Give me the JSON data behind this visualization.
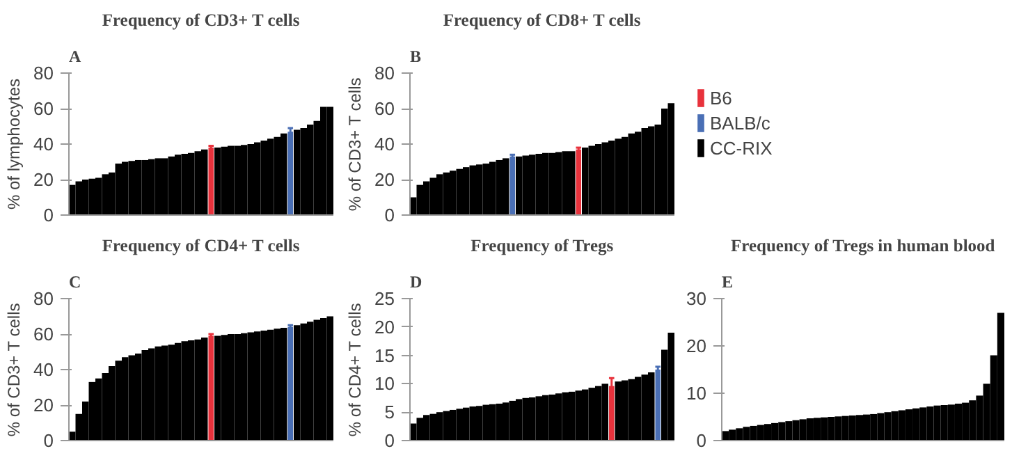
{
  "chart_data": [
    {
      "type": "bar",
      "title": "Frequency of CD3+ T cells",
      "ylabel": "% of lymphocytes",
      "annotations": [
        "A"
      ],
      "categories": [
        null,
        null,
        null,
        null,
        null,
        null,
        null,
        null,
        null,
        null,
        null,
        null,
        null,
        null,
        null,
        null,
        null,
        null,
        null,
        null,
        null,
        null,
        null,
        null,
        null,
        null,
        null,
        null,
        null,
        null,
        null,
        null,
        null,
        null,
        null,
        null,
        null,
        null,
        null,
        null
      ],
      "series": [
        {
          "color": "#000000",
          "values": [
            17,
            19,
            20,
            20.5,
            21,
            23,
            24,
            29,
            30,
            30.5,
            31,
            31,
            31.5,
            32,
            32,
            33,
            34,
            34.5,
            35,
            36,
            37,
            null,
            38,
            38.5,
            39,
            39,
            39.5,
            40,
            41,
            42,
            43,
            44,
            46,
            null,
            48,
            49,
            51,
            53,
            61,
            61
          ]
        },
        {
          "color": "#e8323c",
          "values": [
            null,
            null,
            null,
            null,
            null,
            null,
            null,
            null,
            null,
            null,
            null,
            null,
            null,
            null,
            null,
            null,
            null,
            null,
            null,
            null,
            null,
            38,
            null,
            null,
            null,
            null,
            null,
            null,
            null,
            null,
            null,
            null,
            null,
            null,
            null,
            null,
            null,
            null,
            null,
            null
          ],
          "errors": [
            null,
            null,
            null,
            null,
            null,
            null,
            null,
            null,
            null,
            null,
            null,
            null,
            null,
            null,
            null,
            null,
            null,
            null,
            null,
            null,
            null,
            1,
            null,
            null,
            null,
            null,
            null,
            null,
            null,
            null,
            null,
            null,
            null,
            null,
            null,
            null,
            null,
            null,
            null,
            null
          ]
        },
        {
          "color": "#4a6fb5",
          "values": [
            null,
            null,
            null,
            null,
            null,
            null,
            null,
            null,
            null,
            null,
            null,
            null,
            null,
            null,
            null,
            null,
            null,
            null,
            null,
            null,
            null,
            null,
            null,
            null,
            null,
            null,
            null,
            null,
            null,
            null,
            null,
            null,
            null,
            47,
            null,
            null,
            null,
            null,
            null,
            null
          ],
          "errors": [
            null,
            null,
            null,
            null,
            null,
            null,
            null,
            null,
            null,
            null,
            null,
            null,
            null,
            null,
            null,
            null,
            null,
            null,
            null,
            null,
            null,
            null,
            null,
            null,
            null,
            null,
            null,
            null,
            null,
            null,
            null,
            null,
            null,
            2,
            null,
            null,
            null,
            null,
            null,
            null
          ]
        }
      ],
      "ylim": [
        0,
        80
      ],
      "yticks": [
        0,
        20,
        40,
        60,
        80
      ],
      "tick_labels": "y"
    },
    {
      "type": "bar",
      "title": "Frequency of CD8+ T cells",
      "ylabel": "% of CD3+ T cells",
      "annotations": [
        "B"
      ],
      "categories": [
        null,
        null,
        null,
        null,
        null,
        null,
        null,
        null,
        null,
        null,
        null,
        null,
        null,
        null,
        null,
        null,
        null,
        null,
        null,
        null,
        null,
        null,
        null,
        null,
        null,
        null,
        null,
        null,
        null,
        null,
        null,
        null,
        null,
        null,
        null,
        null,
        null,
        null,
        null,
        null
      ],
      "series": [
        {
          "name": "B6",
          "color": "#e8323c",
          "values": [
            null,
            null,
            null,
            null,
            null,
            null,
            null,
            null,
            null,
            null,
            null,
            null,
            null,
            null,
            null,
            null,
            null,
            null,
            null,
            null,
            null,
            null,
            null,
            null,
            null,
            37,
            null,
            null,
            null,
            null,
            null,
            null,
            null,
            null,
            null,
            null,
            null,
            null,
            null,
            null
          ],
          "errors": [
            null,
            null,
            null,
            null,
            null,
            null,
            null,
            null,
            null,
            null,
            null,
            null,
            null,
            null,
            null,
            null,
            null,
            null,
            null,
            null,
            null,
            null,
            null,
            null,
            null,
            1,
            null,
            null,
            null,
            null,
            null,
            null,
            null,
            null,
            null,
            null,
            null,
            null,
            null,
            null
          ]
        },
        {
          "name": "BALB/c",
          "color": "#4a6fb5",
          "values": [
            null,
            null,
            null,
            null,
            null,
            null,
            null,
            null,
            null,
            null,
            null,
            null,
            null,
            null,
            null,
            33,
            null,
            null,
            null,
            null,
            null,
            null,
            null,
            null,
            null,
            null,
            null,
            null,
            null,
            null,
            null,
            null,
            null,
            null,
            null,
            null,
            null,
            null,
            null,
            null
          ],
          "errors": [
            null,
            null,
            null,
            null,
            null,
            null,
            null,
            null,
            null,
            null,
            null,
            null,
            null,
            null,
            null,
            1,
            null,
            null,
            null,
            null,
            null,
            null,
            null,
            null,
            null,
            null,
            null,
            null,
            null,
            null,
            null,
            null,
            null,
            null,
            null,
            null,
            null,
            null,
            null,
            null
          ]
        },
        {
          "name": "CC-RIX",
          "color": "#000000",
          "values": [
            10,
            17,
            19,
            21,
            23,
            24,
            25,
            26,
            27,
            28,
            28.5,
            29,
            30,
            31,
            32,
            null,
            33,
            33.5,
            34,
            34.5,
            35,
            35,
            35.5,
            36,
            36,
            null,
            38,
            39,
            40,
            41,
            42,
            43,
            44,
            46,
            47,
            49,
            50,
            51,
            60,
            63
          ]
        }
      ],
      "ylim": [
        0,
        80
      ],
      "yticks": [
        0,
        20,
        40,
        60,
        80
      ],
      "tick_labels": "y",
      "legend": "right"
    },
    {
      "type": "bar",
      "title": "Frequency of CD4+ T cells",
      "ylabel": "% of CD3+ T cells",
      "annotations": [
        "C"
      ],
      "categories": [
        null,
        null,
        null,
        null,
        null,
        null,
        null,
        null,
        null,
        null,
        null,
        null,
        null,
        null,
        null,
        null,
        null,
        null,
        null,
        null,
        null,
        null,
        null,
        null,
        null,
        null,
        null,
        null,
        null,
        null,
        null,
        null,
        null,
        null,
        null,
        null,
        null,
        null,
        null,
        null
      ],
      "series": [
        {
          "color": "#000000",
          "values": [
            5,
            15,
            22,
            33,
            35,
            38,
            42,
            45,
            47,
            48,
            49,
            51,
            52,
            53,
            53.5,
            54,
            55,
            56,
            56.5,
            57,
            58,
            null,
            59,
            59.5,
            60,
            60,
            60.5,
            61,
            61.5,
            62,
            62.5,
            63,
            63.5,
            null,
            65,
            66,
            67,
            68,
            69,
            70
          ]
        },
        {
          "color": "#e8323c",
          "values": [
            null,
            null,
            null,
            null,
            null,
            null,
            null,
            null,
            null,
            null,
            null,
            null,
            null,
            null,
            null,
            null,
            null,
            null,
            null,
            null,
            null,
            59,
            null,
            null,
            null,
            null,
            null,
            null,
            null,
            null,
            null,
            null,
            null,
            null,
            null,
            null,
            null,
            null,
            null,
            null
          ],
          "errors": [
            null,
            null,
            null,
            null,
            null,
            null,
            null,
            null,
            null,
            null,
            null,
            null,
            null,
            null,
            null,
            null,
            null,
            null,
            null,
            null,
            null,
            1,
            null,
            null,
            null,
            null,
            null,
            null,
            null,
            null,
            null,
            null,
            null,
            null,
            null,
            null,
            null,
            null,
            null,
            null
          ]
        },
        {
          "color": "#4a6fb5",
          "values": [
            null,
            null,
            null,
            null,
            null,
            null,
            null,
            null,
            null,
            null,
            null,
            null,
            null,
            null,
            null,
            null,
            null,
            null,
            null,
            null,
            null,
            null,
            null,
            null,
            null,
            null,
            null,
            null,
            null,
            null,
            null,
            null,
            null,
            64,
            null,
            null,
            null,
            null,
            null,
            null
          ],
          "errors": [
            null,
            null,
            null,
            null,
            null,
            null,
            null,
            null,
            null,
            null,
            null,
            null,
            null,
            null,
            null,
            null,
            null,
            null,
            null,
            null,
            null,
            null,
            null,
            null,
            null,
            null,
            null,
            null,
            null,
            null,
            null,
            null,
            null,
            1,
            null,
            null,
            null,
            null,
            null,
            null
          ]
        }
      ],
      "ylim": [
        0,
        80
      ],
      "yticks": [
        0,
        20,
        40,
        60,
        80
      ],
      "tick_labels": "y"
    },
    {
      "type": "bar",
      "title": "Frequency of Tregs",
      "ylabel": "% of CD4+ T cells",
      "annotations": [
        "D"
      ],
      "categories": [
        null,
        null,
        null,
        null,
        null,
        null,
        null,
        null,
        null,
        null,
        null,
        null,
        null,
        null,
        null,
        null,
        null,
        null,
        null,
        null,
        null,
        null,
        null,
        null,
        null,
        null,
        null,
        null,
        null,
        null,
        null,
        null,
        null,
        null,
        null,
        null,
        null,
        null,
        null,
        null
      ],
      "series": [
        {
          "color": "#000000",
          "values": [
            3,
            4,
            4.5,
            4.7,
            5,
            5.2,
            5.4,
            5.6,
            5.8,
            6,
            6.1,
            6.3,
            6.4,
            6.5,
            6.7,
            7,
            7.3,
            7.5,
            7.6,
            7.8,
            8,
            8.1,
            8.3,
            8.5,
            8.6,
            8.8,
            9,
            9.3,
            9.6,
            10,
            null,
            10.4,
            10.6,
            10.8,
            11.2,
            11.6,
            12,
            null,
            16,
            19
          ]
        },
        {
          "color": "#e8323c",
          "values": [
            null,
            null,
            null,
            null,
            null,
            null,
            null,
            null,
            null,
            null,
            null,
            null,
            null,
            null,
            null,
            null,
            null,
            null,
            null,
            null,
            null,
            null,
            null,
            null,
            null,
            null,
            null,
            null,
            null,
            null,
            9.6,
            null,
            null,
            null,
            null,
            null,
            null,
            null,
            null,
            null
          ],
          "errors": [
            null,
            null,
            null,
            null,
            null,
            null,
            null,
            null,
            null,
            null,
            null,
            null,
            null,
            null,
            null,
            null,
            null,
            null,
            null,
            null,
            null,
            null,
            null,
            null,
            null,
            null,
            null,
            null,
            null,
            null,
            1.4,
            null,
            null,
            null,
            null,
            null,
            null,
            null,
            null,
            null
          ]
        },
        {
          "color": "#4a6fb5",
          "values": [
            null,
            null,
            null,
            null,
            null,
            null,
            null,
            null,
            null,
            null,
            null,
            null,
            null,
            null,
            null,
            null,
            null,
            null,
            null,
            null,
            null,
            null,
            null,
            null,
            null,
            null,
            null,
            null,
            null,
            null,
            null,
            null,
            null,
            null,
            null,
            null,
            null,
            12.5,
            null,
            null
          ],
          "errors": [
            null,
            null,
            null,
            null,
            null,
            null,
            null,
            null,
            null,
            null,
            null,
            null,
            null,
            null,
            null,
            null,
            null,
            null,
            null,
            null,
            null,
            null,
            null,
            null,
            null,
            null,
            null,
            null,
            null,
            null,
            null,
            null,
            null,
            null,
            null,
            null,
            null,
            0.5,
            null,
            null
          ]
        }
      ],
      "ylim": [
        0,
        25
      ],
      "yticks": [
        0,
        5,
        10,
        15,
        20,
        25
      ],
      "tick_labels": "y"
    },
    {
      "type": "bar",
      "title": "Frequency of Tregs in human blood",
      "annotations": [
        "E"
      ],
      "categories": [
        null,
        null,
        null,
        null,
        null,
        null,
        null,
        null,
        null,
        null,
        null,
        null,
        null,
        null,
        null,
        null,
        null,
        null,
        null,
        null,
        null,
        null,
        null,
        null,
        null,
        null,
        null,
        null,
        null,
        null,
        null,
        null,
        null,
        null,
        null,
        null,
        null,
        null,
        null,
        null
      ],
      "series": [
        {
          "color": "#000000",
          "values": [
            2,
            2.3,
            2.6,
            2.9,
            3.1,
            3.3,
            3.5,
            3.7,
            3.9,
            4.1,
            4.3,
            4.5,
            4.7,
            4.8,
            4.9,
            5,
            5.1,
            5.2,
            5.3,
            5.4,
            5.5,
            5.6,
            5.8,
            6,
            6.2,
            6.4,
            6.6,
            6.8,
            7,
            7.2,
            7.4,
            7.5,
            7.6,
            7.8,
            8,
            8.5,
            9.5,
            12,
            18,
            27
          ]
        }
      ],
      "ylim": [
        0,
        30
      ],
      "yticks": [
        0,
        10,
        20,
        30
      ],
      "tick_labels": "y"
    }
  ]
}
